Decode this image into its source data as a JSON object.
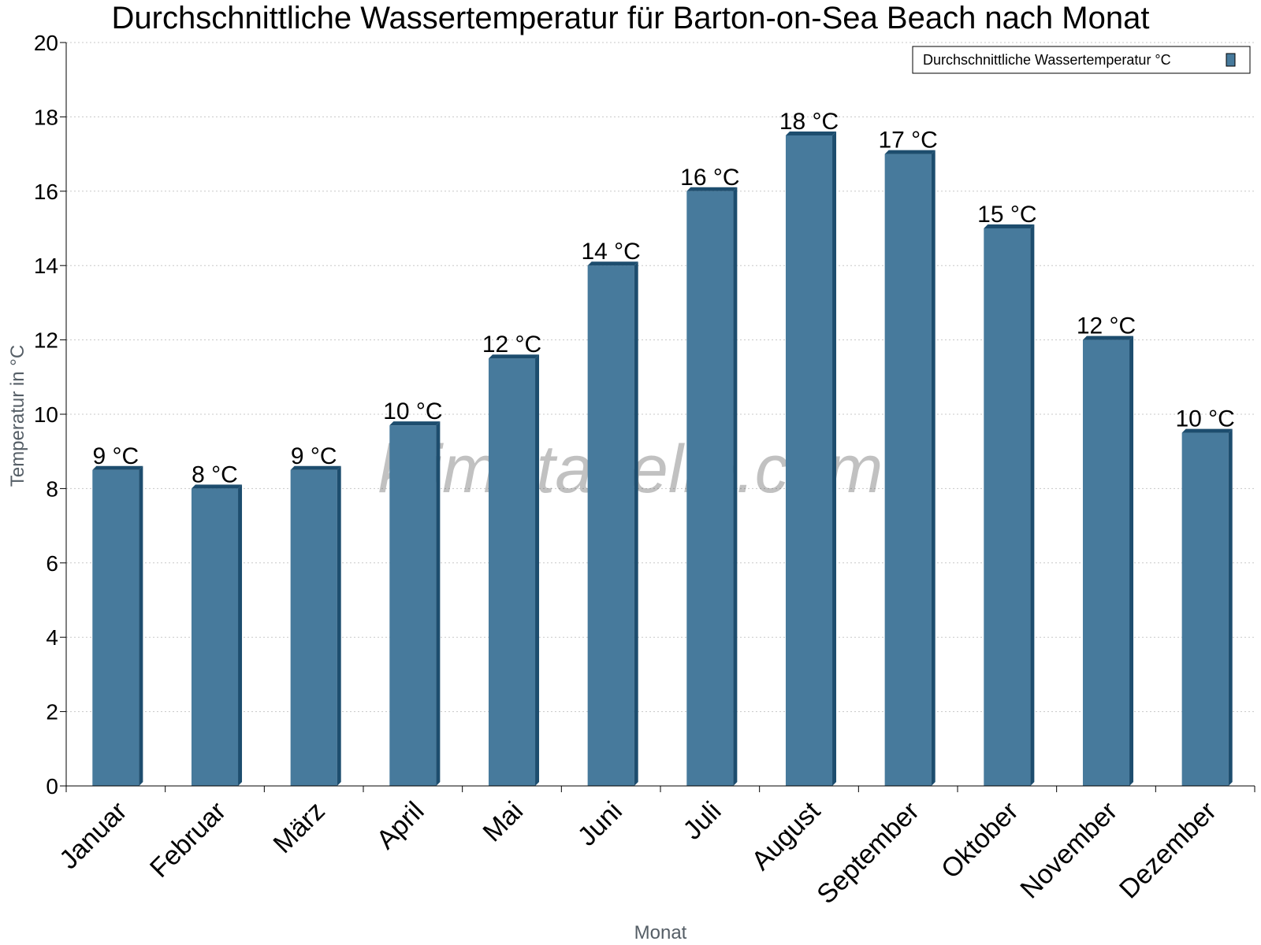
{
  "watermark": "klimatabelle.com",
  "colors": {
    "bar": "#477a9c",
    "bar_dark": "#1d4d6e",
    "grid": "#c8c8c8",
    "axis": "#000000"
  },
  "chart_data": {
    "type": "bar",
    "title": "Durchschnittliche Wassertemperatur für Barton-on-Sea Beach nach Monat",
    "xlabel": "Monat",
    "ylabel": "Temperatur in °C",
    "ylim": [
      0,
      20
    ],
    "yticks": [
      0,
      2,
      4,
      6,
      8,
      10,
      12,
      14,
      16,
      18,
      20
    ],
    "grid": true,
    "legend_position": "top-right",
    "categories": [
      "Januar",
      "Februar",
      "März",
      "April",
      "Mai",
      "Juni",
      "Juli",
      "August",
      "September",
      "Oktober",
      "November",
      "Dezember"
    ],
    "series": [
      {
        "name": "Durchschnittliche Wassertemperatur °C",
        "values": [
          8.5,
          8,
          8.5,
          9.7,
          11.5,
          14,
          16,
          17.5,
          17,
          15,
          12,
          9.5
        ],
        "labels": [
          "9 °C",
          "8 °C",
          "9 °C",
          "10 °C",
          "12 °C",
          "14 °C",
          "16 °C",
          "18 °C",
          "17 °C",
          "15 °C",
          "12 °C",
          "10 °C"
        ]
      }
    ]
  }
}
